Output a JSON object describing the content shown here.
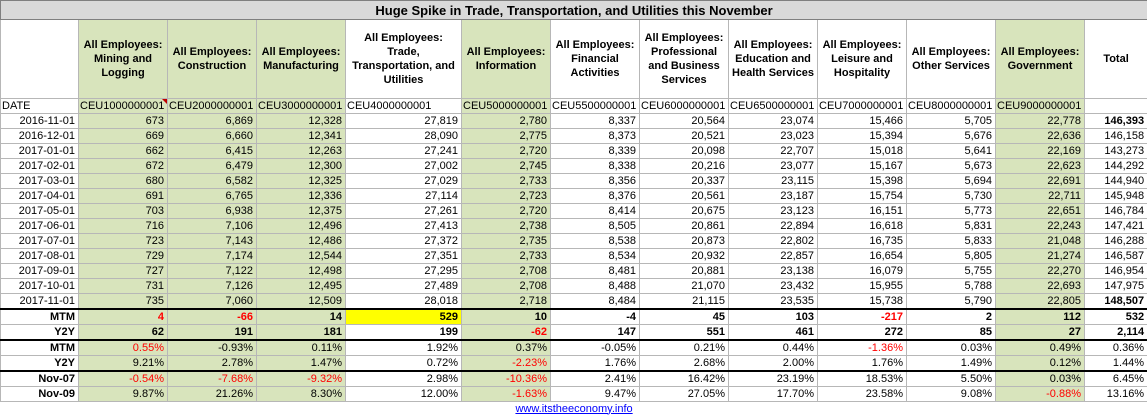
{
  "title": "Huge Spike in Trade, Transportation, and Utilities this November",
  "columns": [
    {
      "label": "All Employees: Mining and Logging",
      "code": "CEU1000000001",
      "green": true
    },
    {
      "label": "All Employees: Construction",
      "code": "CEU2000000001",
      "green": true
    },
    {
      "label": "All Employees: Manufacturing",
      "code": "CEU3000000001",
      "green": true
    },
    {
      "label": "All Employees: Trade, Transportation, and Utilities",
      "code": "CEU4000000001",
      "green": false
    },
    {
      "label": "All Employees: Information",
      "code": "CEU5000000001",
      "green": true
    },
    {
      "label": "All Employees: Financial Activities",
      "code": "CEU5500000001",
      "green": false
    },
    {
      "label": "All Employees: Professional and Business Services",
      "code": "CEU6000000001",
      "green": false
    },
    {
      "label": "All Employees: Education and Health Services",
      "code": "CEU6500000001",
      "green": false
    },
    {
      "label": "All Employees: Leisure and Hospitality",
      "code": "CEU7000000001",
      "green": false
    },
    {
      "label": "All Employees: Other Services",
      "code": "CEU8000000001",
      "green": false
    },
    {
      "label": "All Employees: Government",
      "code": "CEU9000000001",
      "green": true
    }
  ],
  "total_label": "Total",
  "date_label": "DATE",
  "rows": [
    {
      "date": "2016-11-01",
      "values": [
        "673",
        "6,869",
        "12,328",
        "27,819",
        "2,780",
        "8,337",
        "20,564",
        "23,074",
        "15,466",
        "5,705",
        "22,778"
      ],
      "total": "146,393",
      "total_bold": true
    },
    {
      "date": "2016-12-01",
      "values": [
        "669",
        "6,660",
        "12,341",
        "28,090",
        "2,775",
        "8,373",
        "20,521",
        "23,023",
        "15,394",
        "5,676",
        "22,636"
      ],
      "total": "146,158",
      "total_bold": false
    },
    {
      "date": "2017-01-01",
      "values": [
        "662",
        "6,415",
        "12,263",
        "27,241",
        "2,720",
        "8,339",
        "20,098",
        "22,707",
        "15,018",
        "5,641",
        "22,169"
      ],
      "total": "143,273",
      "total_bold": false
    },
    {
      "date": "2017-02-01",
      "values": [
        "672",
        "6,479",
        "12,300",
        "27,002",
        "2,745",
        "8,338",
        "20,216",
        "23,077",
        "15,167",
        "5,673",
        "22,623"
      ],
      "total": "144,292",
      "total_bold": false
    },
    {
      "date": "2017-03-01",
      "values": [
        "680",
        "6,582",
        "12,325",
        "27,029",
        "2,733",
        "8,356",
        "20,337",
        "23,115",
        "15,398",
        "5,694",
        "22,691"
      ],
      "total": "144,940",
      "total_bold": false
    },
    {
      "date": "2017-04-01",
      "values": [
        "691",
        "6,765",
        "12,336",
        "27,114",
        "2,723",
        "8,376",
        "20,561",
        "23,187",
        "15,754",
        "5,730",
        "22,711"
      ],
      "total": "145,948",
      "total_bold": false
    },
    {
      "date": "2017-05-01",
      "values": [
        "703",
        "6,938",
        "12,375",
        "27,261",
        "2,720",
        "8,414",
        "20,675",
        "23,123",
        "16,151",
        "5,773",
        "22,651"
      ],
      "total": "146,784",
      "total_bold": false
    },
    {
      "date": "2017-06-01",
      "values": [
        "716",
        "7,106",
        "12,496",
        "27,413",
        "2,738",
        "8,505",
        "20,861",
        "22,894",
        "16,618",
        "5,831",
        "22,243"
      ],
      "total": "147,421",
      "total_bold": false
    },
    {
      "date": "2017-07-01",
      "values": [
        "723",
        "7,143",
        "12,486",
        "27,372",
        "2,735",
        "8,538",
        "20,873",
        "22,802",
        "16,735",
        "5,833",
        "21,048"
      ],
      "total": "146,288",
      "total_bold": false
    },
    {
      "date": "2017-08-01",
      "values": [
        "729",
        "7,174",
        "12,544",
        "27,351",
        "2,733",
        "8,534",
        "20,932",
        "22,857",
        "16,654",
        "5,805",
        "21,274"
      ],
      "total": "146,587",
      "total_bold": false
    },
    {
      "date": "2017-09-01",
      "values": [
        "727",
        "7,122",
        "12,498",
        "27,295",
        "2,708",
        "8,481",
        "20,881",
        "23,138",
        "16,079",
        "5,755",
        "22,270"
      ],
      "total": "146,954",
      "total_bold": false
    },
    {
      "date": "2017-10-01",
      "values": [
        "731",
        "7,126",
        "12,495",
        "27,489",
        "2,708",
        "8,488",
        "21,070",
        "23,432",
        "15,955",
        "5,788",
        "22,693"
      ],
      "total": "147,975",
      "total_bold": false
    },
    {
      "date": "2017-11-01",
      "values": [
        "735",
        "7,060",
        "12,509",
        "28,018",
        "2,718",
        "8,484",
        "21,115",
        "23,535",
        "15,738",
        "5,790",
        "22,805"
      ],
      "total": "148,507",
      "total_bold": true
    }
  ],
  "summary": [
    {
      "label": "MTM",
      "values": [
        "4",
        "-66",
        "14",
        "529",
        "10",
        "-4",
        "45",
        "103",
        "-217",
        "2",
        "112"
      ],
      "total": "532",
      "red": [
        true,
        true,
        false,
        false,
        false,
        false,
        false,
        false,
        true,
        false,
        false
      ],
      "highlight_index": 3,
      "bold": true
    },
    {
      "label": "Y2Y",
      "values": [
        "62",
        "191",
        "181",
        "199",
        "-62",
        "147",
        "551",
        "461",
        "272",
        "85",
        "27"
      ],
      "total": "2,114",
      "red": [
        false,
        false,
        false,
        false,
        true,
        false,
        false,
        false,
        false,
        false,
        false
      ],
      "bold": true
    },
    {
      "label": "MTM",
      "values": [
        "0.55%",
        "-0.93%",
        "0.11%",
        "1.92%",
        "0.37%",
        "-0.05%",
        "0.21%",
        "0.44%",
        "-1.36%",
        "0.03%",
        "0.49%"
      ],
      "total": "0.36%",
      "red": [
        true,
        false,
        false,
        false,
        false,
        false,
        false,
        false,
        true,
        false,
        false
      ],
      "bold": false
    },
    {
      "label": "Y2Y",
      "values": [
        "9.21%",
        "2.78%",
        "1.47%",
        "0.72%",
        "-2.23%",
        "1.76%",
        "2.68%",
        "2.00%",
        "1.76%",
        "1.49%",
        "0.12%"
      ],
      "total": "1.44%",
      "red": [
        false,
        false,
        false,
        false,
        true,
        false,
        false,
        false,
        false,
        false,
        false
      ],
      "bold": false
    },
    {
      "label": "Nov-07",
      "values": [
        "-0.54%",
        "-7.68%",
        "-9.32%",
        "2.98%",
        "-10.36%",
        "2.41%",
        "16.42%",
        "23.19%",
        "18.53%",
        "5.50%",
        "0.03%"
      ],
      "total": "6.45%",
      "red": [
        true,
        true,
        true,
        false,
        true,
        false,
        false,
        false,
        false,
        false,
        false
      ],
      "bold": false
    },
    {
      "label": "Nov-09",
      "values": [
        "9.87%",
        "21.26%",
        "8.30%",
        "12.00%",
        "-1.63%",
        "9.47%",
        "27.05%",
        "17.70%",
        "23.58%",
        "9.08%",
        "-0.88%"
      ],
      "total": "13.16%",
      "red": [
        false,
        false,
        false,
        false,
        true,
        false,
        false,
        false,
        false,
        false,
        true
      ],
      "bold": false
    }
  ],
  "footer_link": "www.itstheeconomy.info",
  "colors": {
    "green": "#d8e4bc",
    "highlight": "#ffff00",
    "negative": "#ff0000",
    "link": "#0000ff"
  }
}
